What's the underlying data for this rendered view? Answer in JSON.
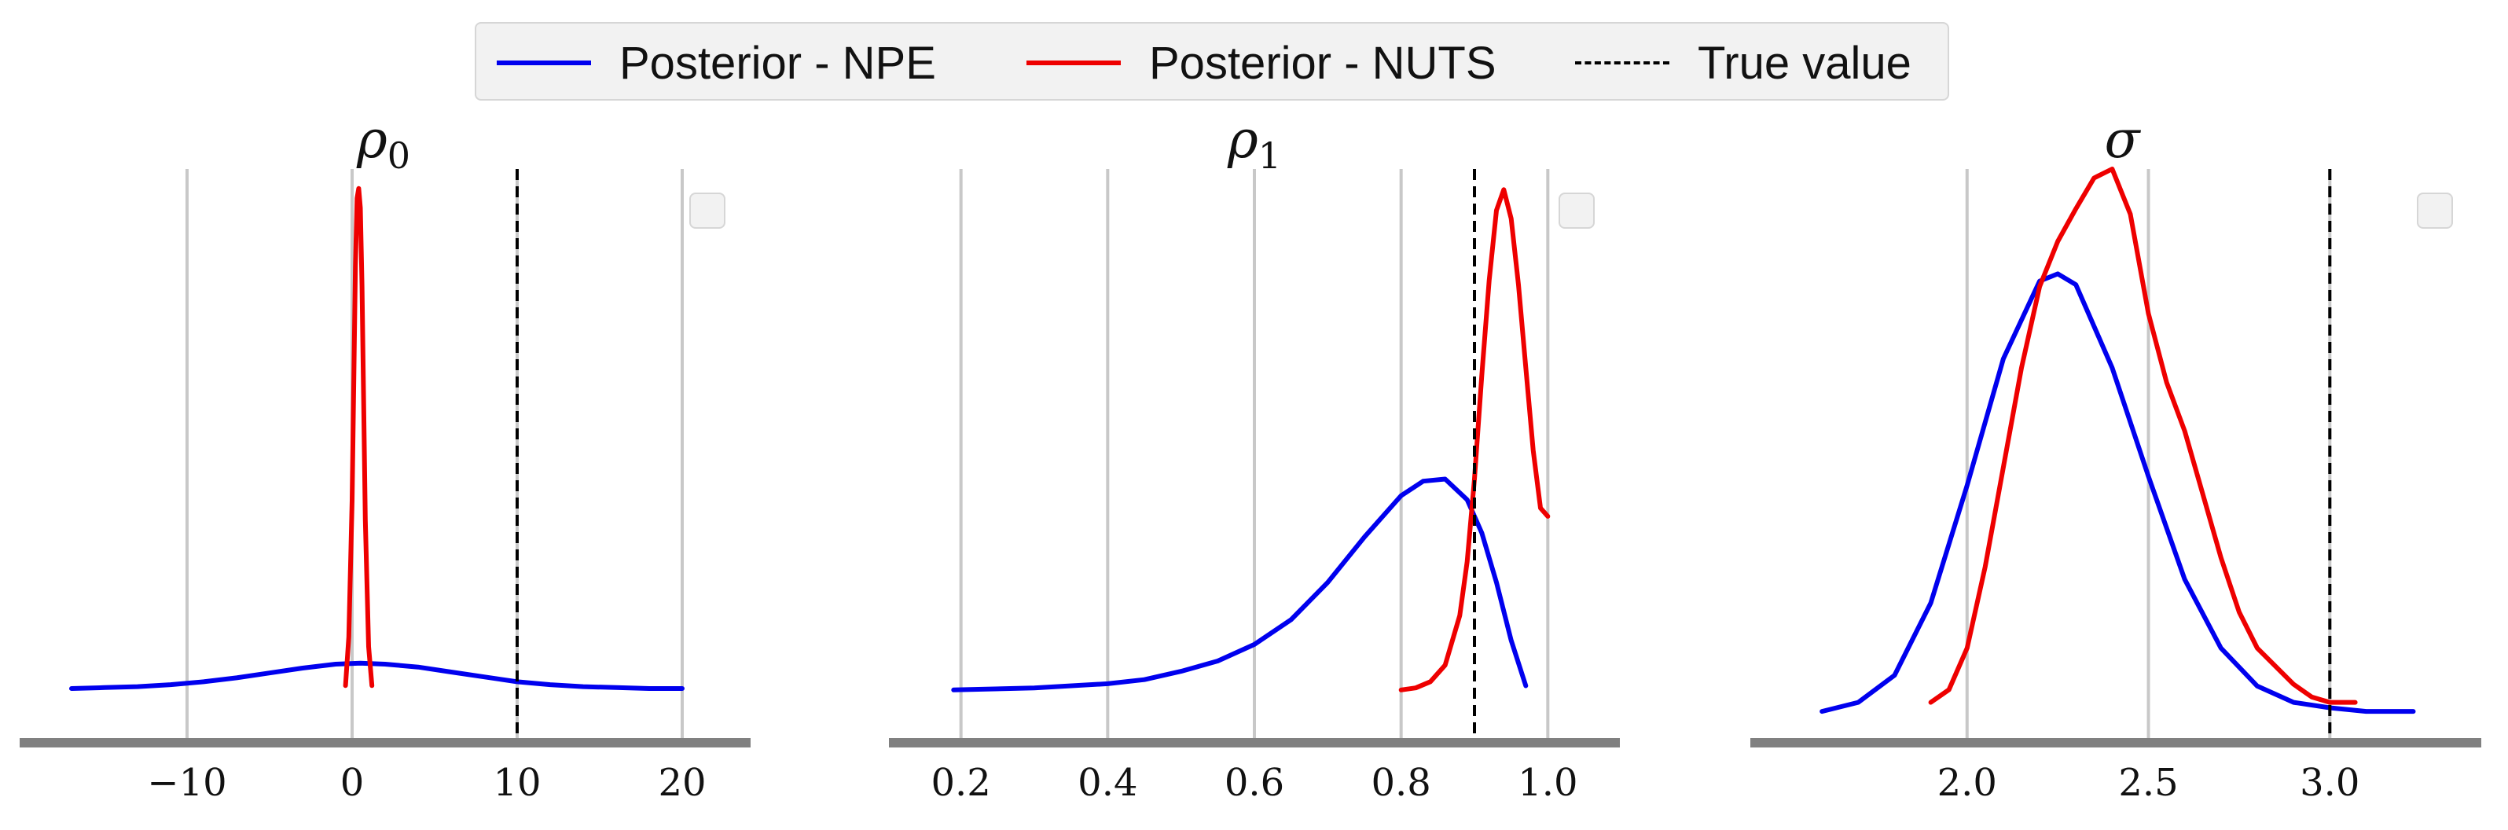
{
  "legend": {
    "items": [
      {
        "label": "Posterior - NPE",
        "color": "#0000ee",
        "style": "solid"
      },
      {
        "label": "Posterior - NUTS",
        "color": "#ee0000",
        "style": "solid"
      },
      {
        "label": "True value",
        "color": "#000000",
        "style": "dashed"
      }
    ]
  },
  "chart_data": [
    {
      "type": "line",
      "title": "ρ₀",
      "title_base": "ρ",
      "title_sub": "0",
      "xticks": [
        -10,
        0,
        10,
        20
      ],
      "xtick_labels": [
        "−10",
        "0",
        "10",
        "20"
      ],
      "xlim": [
        -18,
        22
      ],
      "ylim": [
        -0.002,
        0.56
      ],
      "grid": "vertical",
      "true_value": 10,
      "series": [
        {
          "name": "Posterior - NPE",
          "color": "#0000ee",
          "x": [
            -17,
            -15,
            -13,
            -11,
            -9,
            -7,
            -5,
            -3,
            -1,
            0.5,
            2,
            4,
            6,
            8,
            10,
            12,
            14,
            16,
            18,
            20
          ],
          "y": [
            0.027,
            0.028,
            0.029,
            0.031,
            0.034,
            0.038,
            0.043,
            0.048,
            0.052,
            0.053,
            0.052,
            0.049,
            0.044,
            0.039,
            0.034,
            0.031,
            0.029,
            0.028,
            0.027,
            0.027
          ]
        },
        {
          "name": "Posterior - NUTS",
          "color": "#ee0000",
          "x": [
            -0.4,
            -0.2,
            0.0,
            0.1,
            0.2,
            0.3,
            0.4,
            0.5,
            0.6,
            0.7,
            0.8,
            1.0,
            1.2
          ],
          "y": [
            0.03,
            0.08,
            0.22,
            0.34,
            0.46,
            0.53,
            0.54,
            0.52,
            0.44,
            0.32,
            0.2,
            0.07,
            0.03
          ]
        }
      ]
    },
    {
      "type": "line",
      "title": "ρ₁",
      "title_base": "ρ",
      "title_sub": "1",
      "xticks": [
        0.2,
        0.4,
        0.6,
        0.8,
        1.0
      ],
      "xtick_labels": [
        "0.2",
        "0.4",
        "0.6",
        "0.8",
        "1.0"
      ],
      "xlim": [
        0.15,
        1.05
      ],
      "ylim": [
        -0.25,
        13
      ],
      "grid": "vertical",
      "true_value": 0.9,
      "series": [
        {
          "name": "Posterior - NPE",
          "color": "#0000ee",
          "x": [
            0.19,
            0.3,
            0.4,
            0.45,
            0.5,
            0.55,
            0.6,
            0.65,
            0.7,
            0.75,
            0.8,
            0.83,
            0.86,
            0.89,
            0.91,
            0.93,
            0.95,
            0.97
          ],
          "y": [
            0.4,
            0.45,
            0.55,
            0.65,
            0.85,
            1.1,
            1.5,
            2.1,
            3.0,
            4.1,
            5.1,
            5.45,
            5.5,
            5.0,
            4.2,
            3.0,
            1.6,
            0.5
          ]
        },
        {
          "name": "Posterior - NUTS",
          "color": "#ee0000",
          "x": [
            0.8,
            0.82,
            0.84,
            0.86,
            0.88,
            0.89,
            0.9,
            0.91,
            0.92,
            0.93,
            0.94,
            0.95,
            0.96,
            0.97,
            0.98,
            0.99,
            1.0
          ],
          "y": [
            0.4,
            0.45,
            0.6,
            1.0,
            2.2,
            3.5,
            5.5,
            8.0,
            10.3,
            12.0,
            12.5,
            11.8,
            10.2,
            8.2,
            6.2,
            4.8,
            4.6
          ]
        }
      ]
    },
    {
      "type": "line",
      "title": "σ",
      "title_base": "σ",
      "title_sub": "",
      "xticks": [
        2.0,
        2.5,
        3.0
      ],
      "xtick_labels": [
        "2.0",
        "2.5",
        "3.0"
      ],
      "xlim": [
        1.5,
        3.32
      ],
      "ylim": [
        -0.03,
        3.0
      ],
      "grid": "vertical",
      "true_value": 3.0,
      "series": [
        {
          "name": "Posterior - NPE",
          "color": "#0000ee",
          "x": [
            1.6,
            1.7,
            1.8,
            1.9,
            2.0,
            2.1,
            2.2,
            2.25,
            2.3,
            2.4,
            2.5,
            2.6,
            2.7,
            2.8,
            2.9,
            3.0,
            3.1,
            3.23
          ],
          "y": [
            0.0,
            0.05,
            0.2,
            0.6,
            1.25,
            1.95,
            2.38,
            2.42,
            2.36,
            1.9,
            1.3,
            0.73,
            0.35,
            0.14,
            0.05,
            0.02,
            0.0,
            0.0
          ]
        },
        {
          "name": "Posterior - NUTS",
          "color": "#ee0000",
          "x": [
            1.9,
            1.95,
            2.0,
            2.05,
            2.1,
            2.15,
            2.2,
            2.25,
            2.3,
            2.35,
            2.4,
            2.45,
            2.5,
            2.55,
            2.6,
            2.65,
            2.7,
            2.75,
            2.8,
            2.85,
            2.9,
            2.95,
            3.0,
            3.07
          ],
          "y": [
            0.05,
            0.12,
            0.35,
            0.8,
            1.35,
            1.9,
            2.35,
            2.6,
            2.78,
            2.95,
            3.0,
            2.75,
            2.2,
            1.82,
            1.55,
            1.2,
            0.85,
            0.55,
            0.35,
            0.25,
            0.15,
            0.08,
            0.05,
            0.05
          ]
        }
      ]
    }
  ]
}
